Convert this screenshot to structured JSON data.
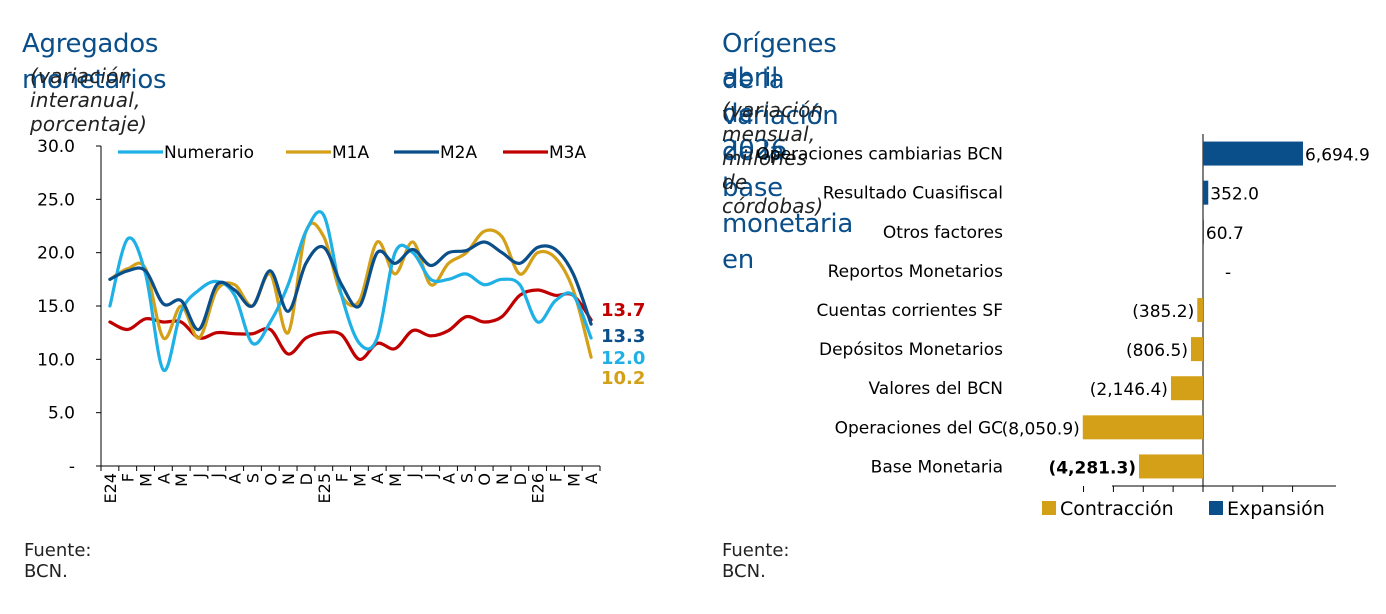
{
  "left": {
    "title": "Agregados monetarios",
    "subtitle": "(variación interanual, porcentaje)",
    "source": "Fuente: BCN."
  },
  "right": {
    "title_line1": "Orígenes de la variación de la base monetaria en",
    "title_line2": "abril de 2026",
    "subtitle": "(variación mensual, millones de córdobas)",
    "source": "Fuente: BCN."
  },
  "chart_data": [
    {
      "type": "line",
      "ylim": [
        0,
        30
      ],
      "yticks": [
        "-",
        "5.0",
        "10.0",
        "15.0",
        "20.0",
        "25.0",
        "30.0"
      ],
      "ytick_values": [
        0,
        5,
        10,
        15,
        20,
        25,
        30
      ],
      "x": [
        "E24",
        "F",
        "M",
        "A",
        "M",
        "J",
        "J",
        "A",
        "S",
        "O",
        "N",
        "D",
        "E25",
        "F",
        "M",
        "A",
        "M",
        "J",
        "J",
        "A",
        "S",
        "O",
        "N",
        "D",
        "E26",
        "F",
        "M",
        "A"
      ],
      "legend_position": "top",
      "series": [
        {
          "name": "Numerario",
          "color": "#1fb1e6",
          "values": [
            15.0,
            21.3,
            18.0,
            9.0,
            14.5,
            16.5,
            17.3,
            16.0,
            11.5,
            13.5,
            17.0,
            22.0,
            23.5,
            16.0,
            11.5,
            12.0,
            20.0,
            20.0,
            17.5,
            17.5,
            18.0,
            17.0,
            17.5,
            17.0,
            13.5,
            15.5,
            16.0,
            12.0
          ]
        },
        {
          "name": "M1A",
          "color": "#d4a017",
          "values": [
            17.5,
            18.5,
            18.5,
            12.0,
            15.0,
            12.0,
            16.5,
            17.0,
            15.0,
            18.0,
            12.5,
            22.0,
            21.5,
            16.0,
            15.5,
            21.0,
            18.0,
            21.0,
            17.0,
            19.0,
            20.0,
            22.0,
            21.5,
            18.0,
            20.0,
            19.5,
            16.5,
            10.2
          ]
        },
        {
          "name": "M2A",
          "color": "#0b4f8a",
          "values": [
            17.5,
            18.3,
            18.3,
            15.2,
            15.5,
            12.8,
            17.0,
            16.5,
            15.0,
            18.3,
            14.5,
            19.0,
            20.5,
            17.0,
            15.0,
            20.0,
            19.0,
            20.3,
            18.8,
            20.0,
            20.2,
            21.0,
            20.0,
            19.0,
            20.5,
            20.3,
            18.0,
            13.3
          ]
        },
        {
          "name": "M3A",
          "color": "#c00000",
          "values": [
            13.5,
            12.8,
            13.8,
            13.5,
            13.5,
            12.0,
            12.5,
            12.4,
            12.4,
            12.8,
            10.5,
            12.0,
            12.5,
            12.3,
            10.0,
            11.5,
            11.0,
            12.7,
            12.2,
            12.7,
            14.0,
            13.5,
            14.0,
            16.0,
            16.5,
            16.0,
            16.0,
            13.7
          ]
        }
      ],
      "end_labels": [
        {
          "series": "M3A",
          "text": "13.7",
          "color": "#c00000"
        },
        {
          "series": "M2A",
          "text": "13.3",
          "color": "#0b4f8a"
        },
        {
          "series": "Numerario",
          "text": "12.0",
          "color": "#1fb1e6"
        },
        {
          "series": "M1A",
          "text": "10.2",
          "color": "#d4a017"
        }
      ]
    },
    {
      "type": "bar",
      "orientation": "horizontal",
      "categories": [
        "Operaciones cambiarias BCN",
        "Resultado Cuasifiscal",
        "Otros factores",
        "Reportos Monetarios",
        "Cuentas corrientes SF",
        "Depósitos Monetarios",
        "Valores del BCN",
        "Operaciones del GC",
        "Base Monetaria"
      ],
      "values": [
        6694.9,
        352.0,
        60.7,
        0,
        -385.2,
        -806.5,
        -2146.4,
        -8050.9,
        -4281.3
      ],
      "labels": [
        "6,694.9",
        "352.0",
        "60.7",
        "-",
        "(385.2)",
        "(806.5)",
        "(2,146.4)",
        "(8,050.9)",
        "(4,281.3)"
      ],
      "bold": [
        false,
        false,
        false,
        false,
        false,
        false,
        false,
        false,
        true
      ],
      "xlim": [
        -8000,
        7000
      ],
      "legend_position": "bottom",
      "legend": [
        {
          "name": "Contracción",
          "color": "#d4a017"
        },
        {
          "name": "Expansión",
          "color": "#0b4f8a"
        }
      ]
    }
  ]
}
